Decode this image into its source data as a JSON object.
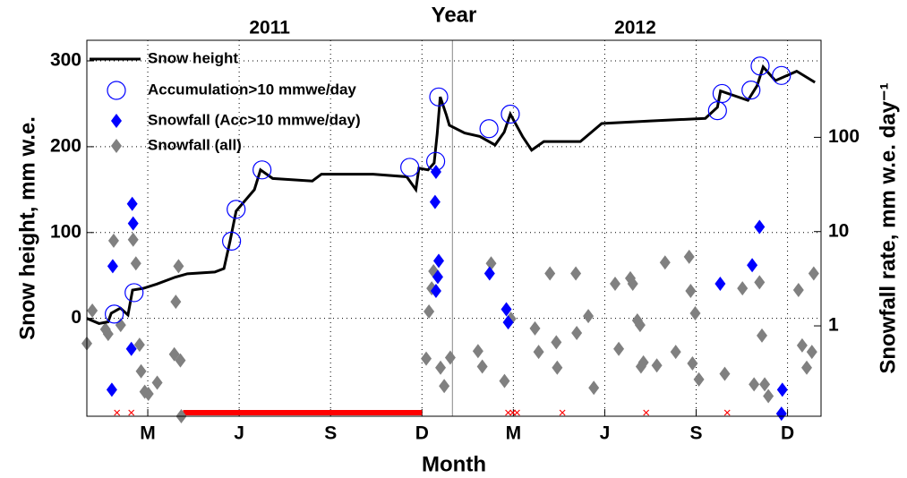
{
  "chart_data": {
    "type": "line",
    "title": "Year",
    "xlabel": "Month",
    "ylabel": "Snow height, mm w.e.",
    "y2label": "Snowfall rate, mm w.e. day⁻¹",
    "xlim": [
      0,
      24.1
    ],
    "xticks": [
      {
        "value": 2,
        "label": "M"
      },
      {
        "value": 5,
        "label": "J"
      },
      {
        "value": 8,
        "label": "S"
      },
      {
        "value": 11,
        "label": "D"
      },
      {
        "value": 14,
        "label": "M"
      },
      {
        "value": 17,
        "label": "J"
      },
      {
        "value": 20,
        "label": "S"
      },
      {
        "value": 23,
        "label": "D"
      }
    ],
    "year_labels": [
      {
        "value": 6,
        "label": "2011"
      },
      {
        "value": 18,
        "label": "2012"
      }
    ],
    "year_boundary": 12,
    "ylim": [
      -114,
      324
    ],
    "yticks": [
      0,
      100,
      200,
      300
    ],
    "y2lim": [
      0.11,
      1070
    ],
    "y2ticks": [
      1,
      10,
      100
    ],
    "y2_log": true,
    "grid": true,
    "legend": "upper-left",
    "no_data_marks": {
      "color": "#ff0000",
      "x": [
        0.99,
        1.46,
        13.83,
        13.98,
        14.12,
        15.61,
        18.36,
        21.02
      ],
      "span": [
        3.16,
        11.0
      ]
    },
    "series": [
      {
        "name": "Snow height",
        "color": "#000000",
        "marker": "line",
        "axis": "y",
        "x": [
          0,
          0.4,
          0.7,
          0.8,
          1.1,
          1.35,
          1.5,
          1.85,
          2.3,
          2.9,
          3.3,
          4.2,
          4.5,
          4.7,
          4.9,
          5.5,
          5.7,
          6.1,
          7.4,
          7.7,
          9.4,
          10.5,
          10.8,
          10.9,
          11.2,
          11.4,
          11.5,
          11.6,
          11.8,
          11.9,
          12.4,
          12.9,
          13.4,
          13.7,
          13.9,
          14.3,
          14.6,
          15.0,
          16.2,
          16.9,
          18.5,
          20.3,
          20.7,
          20.8,
          21.7,
          22.0,
          22.2,
          22.6,
          23.3,
          23.9
        ],
        "values": [
          0,
          -6,
          -4,
          6,
          12,
          4,
          33,
          35,
          40,
          48,
          52,
          54,
          58,
          90,
          125,
          150,
          173,
          163,
          160,
          168,
          168,
          165,
          150,
          175,
          173,
          181,
          215,
          258,
          237,
          225,
          216,
          212,
          202,
          217,
          238,
          212,
          196,
          206,
          206,
          227,
          230,
          233,
          246,
          265,
          254,
          271,
          293,
          277,
          288,
          275
        ]
      },
      {
        "name": "Accumulation>10 mmwe/day",
        "color": "#0000ff",
        "marker": "circle",
        "axis": "y",
        "x": [
          0.9,
          1.55,
          4.75,
          4.9,
          5.75,
          10.6,
          11.45,
          11.55,
          13.2,
          13.9,
          20.7,
          20.85,
          21.8,
          22.1,
          22.8
        ],
        "values": [
          5,
          30,
          90,
          127,
          173,
          176,
          183,
          258,
          221,
          238,
          242,
          262,
          266,
          294,
          283
        ]
      },
      {
        "name": "Snowfall (Acc>10 mmwe/day)",
        "color": "#0000ff",
        "marker": "diamond",
        "axis": "y2",
        "x": [
          0.85,
          0.82,
          1.46,
          1.49,
          1.52,
          11.46,
          11.43,
          11.46,
          11.52,
          11.55,
          13.22,
          13.77,
          13.83,
          20.79,
          21.84,
          22.08,
          22.83,
          22.8
        ],
        "values": [
          4.3,
          0.21,
          0.57,
          19.7,
          12.2,
          43,
          20.6,
          2.35,
          3.3,
          4.9,
          3.6,
          1.5,
          1.09,
          2.8,
          4.4,
          11.2,
          0.21,
          0.117
        ]
      },
      {
        "name": "Snowfall (all)",
        "color": "#808080",
        "marker": "diamond",
        "axis": "y2",
        "x": [
          0,
          0.18,
          0.61,
          0.7,
          0.88,
          1.11,
          1.52,
          1.61,
          1.73,
          1.78,
          1.9,
          2.02,
          2.31,
          2.87,
          2.92,
          3.01,
          3.07,
          3.1,
          11.14,
          11.23,
          11.32,
          11.38,
          11.61,
          11.73,
          11.93,
          12.84,
          12.98,
          13.27,
          13.71,
          13.92,
          14.71,
          14.83,
          15.2,
          15.41,
          15.44,
          16.05,
          16.08,
          16.46,
          16.64,
          17.34,
          17.46,
          17.84,
          17.92,
          18.07,
          18.16,
          18.19,
          18.27,
          18.71,
          18.98,
          19.33,
          19.77,
          19.82,
          19.88,
          19.97,
          20.09,
          20.94,
          21.52,
          21.9,
          22.08,
          22.16,
          22.25,
          22.37,
          23.36,
          23.48,
          23.63,
          23.86,
          23.8
        ],
        "values": [
          0.65,
          1.45,
          0.92,
          0.82,
          8.0,
          1.02,
          8.2,
          4.6,
          0.63,
          0.33,
          0.2,
          0.19,
          0.25,
          0.5,
          1.8,
          4.3,
          0.43,
          0.11,
          0.45,
          1.42,
          2.5,
          3.8,
          0.36,
          0.23,
          0.46,
          0.54,
          0.37,
          4.6,
          0.26,
          1.19,
          0.94,
          0.53,
          3.6,
          0.67,
          0.36,
          3.6,
          0.84,
          1.27,
          0.22,
          2.8,
          0.57,
          3.2,
          2.8,
          1.14,
          1.02,
          0.37,
          0.41,
          0.38,
          4.7,
          0.53,
          5.4,
          2.35,
          0.4,
          1.36,
          0.27,
          0.31,
          2.5,
          0.24,
          2.9,
          0.79,
          0.24,
          0.18,
          2.4,
          0.62,
          0.36,
          3.6,
          0.53
        ]
      }
    ]
  }
}
